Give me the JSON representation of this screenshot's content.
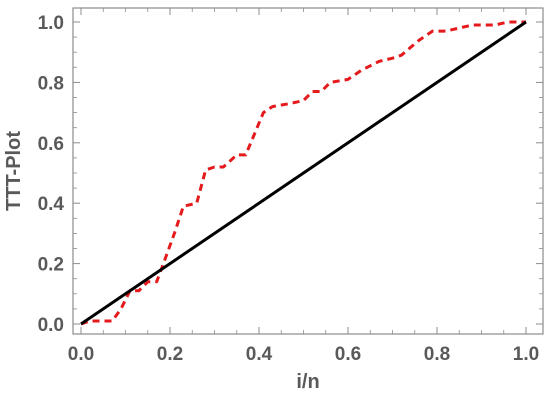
{
  "chart_data": {
    "type": "line",
    "title": "",
    "xlabel": "i/n",
    "ylabel": "TTT-Plot",
    "xlim": [
      0,
      1
    ],
    "ylim": [
      0,
      1
    ],
    "xticks": [
      "0.0",
      "0.2",
      "0.4",
      "0.6",
      "0.8",
      "1.0"
    ],
    "yticks": [
      "0.0",
      "0.2",
      "0.4",
      "0.6",
      "0.8",
      "1.0"
    ],
    "grid": false,
    "legend": "none",
    "series": [
      {
        "style": "dashed",
        "color": "#e41a1c",
        "points": [
          [
            0.0,
            0.0
          ],
          [
            0.02,
            0.01
          ],
          [
            0.07,
            0.01
          ],
          [
            0.09,
            0.05
          ],
          [
            0.11,
            0.11
          ],
          [
            0.13,
            0.11
          ],
          [
            0.15,
            0.14
          ],
          [
            0.17,
            0.14
          ],
          [
            0.19,
            0.22
          ],
          [
            0.21,
            0.3
          ],
          [
            0.23,
            0.39
          ],
          [
            0.26,
            0.4
          ],
          [
            0.28,
            0.51
          ],
          [
            0.3,
            0.52
          ],
          [
            0.32,
            0.52
          ],
          [
            0.35,
            0.56
          ],
          [
            0.37,
            0.56
          ],
          [
            0.39,
            0.63
          ],
          [
            0.41,
            0.7
          ],
          [
            0.43,
            0.72
          ],
          [
            0.47,
            0.73
          ],
          [
            0.5,
            0.74
          ],
          [
            0.52,
            0.77
          ],
          [
            0.54,
            0.77
          ],
          [
            0.56,
            0.8
          ],
          [
            0.6,
            0.81
          ],
          [
            0.63,
            0.84
          ],
          [
            0.67,
            0.87
          ],
          [
            0.7,
            0.88
          ],
          [
            0.72,
            0.89
          ],
          [
            0.76,
            0.94
          ],
          [
            0.79,
            0.97
          ],
          [
            0.82,
            0.97
          ],
          [
            0.85,
            0.98
          ],
          [
            0.88,
            0.99
          ],
          [
            0.93,
            0.99
          ],
          [
            0.96,
            1.0
          ],
          [
            1.0,
            1.0
          ]
        ]
      },
      {
        "style": "solid",
        "color": "#000000",
        "points": [
          [
            0.0,
            0.0
          ],
          [
            1.0,
            1.0
          ]
        ]
      }
    ]
  }
}
